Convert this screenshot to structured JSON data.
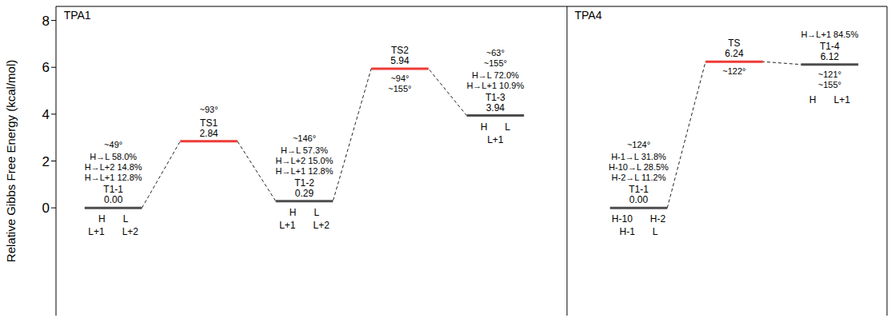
{
  "chart_data": {
    "type": "level",
    "y_label": "Relative Gibbs Free Energy (kcal/mol)",
    "ylim": [
      -4.6,
      8.6
    ],
    "yticks": [
      0,
      2,
      4,
      6,
      8
    ],
    "tick_labels": "y",
    "data_labels": true,
    "panels": [
      {
        "title": "TPA1",
        "categories": [
          "T1-1",
          "TS1",
          "T1-2",
          "TS2",
          "T1-3"
        ],
        "values": [
          0,
          2.84,
          0.29,
          5.94,
          3.94
        ],
        "value_labels": [
          "0.00",
          "2.84",
          "0.29",
          "5.94",
          "3.94"
        ],
        "colors": [
          "#4d4d4d",
          "#ee3b36",
          "#4d4d4d",
          "#ee3b36",
          "#4d4d4d"
        ],
        "transitions": [
          [
            "H→L 58.0%",
            "H→L+2 14.8%",
            "H→L+1 12.8%"
          ],
          [],
          [
            "H→L 57.3%",
            "H→L+2 15.0%",
            "H→L+1 12.8%"
          ],
          [],
          [
            "H→L 72.0%",
            "H→L+1 10.9%"
          ]
        ],
        "angles": [
          [
            "~49°"
          ],
          [
            "~93°"
          ],
          [
            "~146°"
          ],
          [
            "~94°",
            "~155°"
          ],
          [
            "~63°",
            "~155°"
          ]
        ],
        "orbitals": [
          [
            "H",
            "L",
            "L+1",
            "L+2"
          ],
          [],
          [
            "H",
            "L",
            "L+1",
            "L+2"
          ],
          [],
          [
            "H",
            "L",
            "L+1"
          ]
        ]
      },
      {
        "title": "TPA4",
        "categories": [
          "T1-1",
          "TS",
          "T1-4"
        ],
        "values": [
          0,
          6.24,
          6.12
        ],
        "value_labels": [
          "0.00",
          "6.24",
          "6.12"
        ],
        "colors": [
          "#4d4d4d",
          "#ee3b36",
          "#4d4d4d"
        ],
        "transitions": [
          [
            "H-1→L 31.8%",
            "H-10→L 28.5%",
            "H-2→L 11.2%"
          ],
          [],
          [
            "H→L+1 84.5%"
          ]
        ],
        "angles": [
          [
            "~124°"
          ],
          [
            "~122°"
          ],
          [
            "~121°",
            "~155°"
          ]
        ],
        "orbitals": [
          [
            "H-10",
            "H-2",
            "H-1",
            "L"
          ],
          [],
          [
            "H",
            "L+1"
          ]
        ]
      }
    ]
  }
}
